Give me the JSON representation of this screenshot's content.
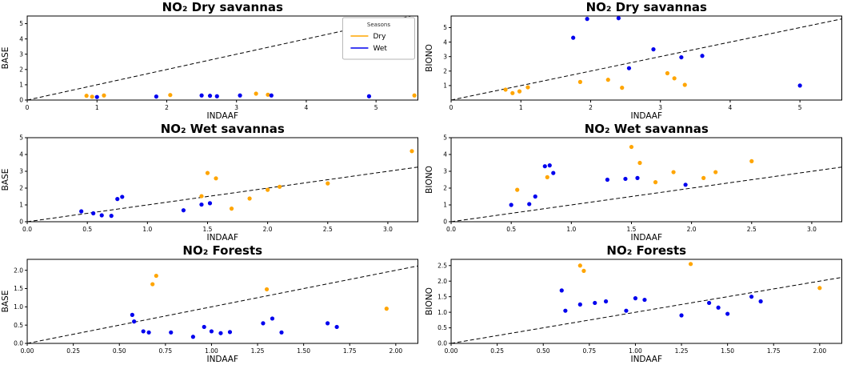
{
  "colors": {
    "dry": "#FFA500",
    "wet": "#0000EE",
    "identity_line": "#000000"
  },
  "legend": {
    "title": "Seasons",
    "entries": [
      {
        "label": "Dry",
        "color_key": "dry"
      },
      {
        "label": "Wet",
        "color_key": "wet"
      }
    ]
  },
  "chart_data": [
    {
      "type": "scatter",
      "title": "NO₂ Dry savannas",
      "xlabel": "INDAAF",
      "ylabel": "BASE",
      "xlim": [
        0,
        5.6
      ],
      "ylim": [
        0,
        5.5
      ],
      "xticks": {
        "values": [
          0,
          1,
          2,
          3,
          4,
          5
        ],
        "labels": [
          "0",
          "1",
          "2",
          "3",
          "4",
          "5"
        ]
      },
      "yticks": {
        "values": [
          0,
          1,
          2,
          3,
          4,
          5
        ],
        "labels": [
          "0",
          "1",
          "2",
          "3",
          "4",
          "5"
        ]
      },
      "identity_line": true,
      "has_legend": true,
      "series": [
        {
          "name": "Dry",
          "color_key": "dry",
          "points": [
            [
              0.85,
              0.28
            ],
            [
              0.93,
              0.22
            ],
            [
              1.1,
              0.3
            ],
            [
              2.05,
              0.33
            ],
            [
              3.28,
              0.42
            ],
            [
              3.45,
              0.35
            ],
            [
              5.55,
              0.3
            ]
          ]
        },
        {
          "name": "Wet",
          "color_key": "wet",
          "points": [
            [
              1.0,
              0.2
            ],
            [
              1.85,
              0.23
            ],
            [
              2.5,
              0.3
            ],
            [
              2.62,
              0.28
            ],
            [
              2.72,
              0.25
            ],
            [
              3.05,
              0.3
            ],
            [
              3.5,
              0.3
            ],
            [
              4.9,
              0.25
            ]
          ]
        }
      ]
    },
    {
      "type": "scatter",
      "title": "NO₂ Dry savannas",
      "xlabel": "INDAAF",
      "ylabel": "BIONO",
      "xlim": [
        0,
        5.6
      ],
      "ylim": [
        0,
        5.8
      ],
      "xticks": {
        "values": [
          0,
          1,
          2,
          3,
          4,
          5
        ],
        "labels": [
          "0",
          "1",
          "2",
          "3",
          "4",
          "5"
        ]
      },
      "yticks": {
        "values": [
          1,
          2,
          3,
          4,
          5
        ],
        "labels": [
          "1",
          "2",
          "3",
          "4",
          "5"
        ]
      },
      "identity_line": true,
      "has_legend": false,
      "series": [
        {
          "name": "Dry",
          "color_key": "dry",
          "points": [
            [
              0.78,
              0.72
            ],
            [
              0.88,
              0.48
            ],
            [
              0.98,
              0.6
            ],
            [
              1.1,
              0.88
            ],
            [
              1.85,
              1.25
            ],
            [
              2.25,
              1.4
            ],
            [
              2.45,
              0.85
            ],
            [
              3.1,
              1.85
            ],
            [
              3.2,
              1.5
            ],
            [
              3.35,
              1.05
            ]
          ]
        },
        {
          "name": "Wet",
          "color_key": "wet",
          "points": [
            [
              1.75,
              4.3
            ],
            [
              1.95,
              5.6
            ],
            [
              2.4,
              5.65
            ],
            [
              2.55,
              2.2
            ],
            [
              2.9,
              3.5
            ],
            [
              3.3,
              2.95
            ],
            [
              3.6,
              3.05
            ],
            [
              5.0,
              1.0
            ]
          ]
        }
      ]
    },
    {
      "type": "scatter",
      "title": "NO₂ Wet savannas",
      "xlabel": "INDAAF",
      "ylabel": "BASE",
      "xlim": [
        0,
        3.25
      ],
      "ylim": [
        0,
        5.0
      ],
      "xticks": {
        "values": [
          0,
          0.5,
          1.0,
          1.5,
          2.0,
          2.5,
          3.0
        ],
        "labels": [
          "0.0",
          "0.5",
          "1.0",
          "1.5",
          "2.0",
          "2.5",
          "3.0"
        ]
      },
      "yticks": {
        "values": [
          0,
          1,
          2,
          3,
          4,
          5
        ],
        "labels": [
          "0",
          "1",
          "2",
          "3",
          "4",
          "5"
        ]
      },
      "identity_line": true,
      "has_legend": false,
      "series": [
        {
          "name": "Dry",
          "color_key": "dry",
          "points": [
            [
              1.45,
              1.52
            ],
            [
              1.5,
              2.9
            ],
            [
              1.57,
              2.58
            ],
            [
              1.7,
              0.78
            ],
            [
              1.85,
              1.38
            ],
            [
              2.0,
              1.9
            ],
            [
              2.1,
              2.08
            ],
            [
              2.5,
              2.28
            ],
            [
              3.2,
              4.2
            ]
          ]
        },
        {
          "name": "Wet",
          "color_key": "wet",
          "points": [
            [
              0.45,
              0.62
            ],
            [
              0.55,
              0.5
            ],
            [
              0.62,
              0.38
            ],
            [
              0.7,
              0.35
            ],
            [
              0.75,
              1.35
            ],
            [
              0.79,
              1.48
            ],
            [
              1.3,
              0.68
            ],
            [
              1.45,
              1.02
            ],
            [
              1.52,
              1.1
            ]
          ]
        }
      ]
    },
    {
      "type": "scatter",
      "title": "NO₂ Wet savannas",
      "xlabel": "INDAAF",
      "ylabel": "BIONO",
      "xlim": [
        0,
        3.25
      ],
      "ylim": [
        0,
        5.0
      ],
      "xticks": {
        "values": [
          0,
          0.5,
          1.0,
          1.5,
          2.0,
          2.5,
          3.0
        ],
        "labels": [
          "0.0",
          "0.5",
          "1.0",
          "1.5",
          "2.0",
          "2.5",
          "3.0"
        ]
      },
      "yticks": {
        "values": [
          0,
          1,
          2,
          3,
          4,
          5
        ],
        "labels": [
          "0",
          "1",
          "2",
          "3",
          "4",
          "5"
        ]
      },
      "identity_line": true,
      "has_legend": false,
      "series": [
        {
          "name": "Dry",
          "color_key": "dry",
          "points": [
            [
              0.55,
              1.9
            ],
            [
              0.8,
              2.65
            ],
            [
              1.5,
              4.45
            ],
            [
              1.57,
              3.5
            ],
            [
              1.7,
              2.35
            ],
            [
              1.85,
              2.95
            ],
            [
              2.1,
              2.6
            ],
            [
              2.2,
              2.95
            ],
            [
              2.5,
              3.6
            ]
          ]
        },
        {
          "name": "Wet",
          "color_key": "wet",
          "points": [
            [
              0.5,
              1.0
            ],
            [
              0.65,
              1.05
            ],
            [
              0.7,
              1.5
            ],
            [
              0.78,
              3.3
            ],
            [
              0.82,
              3.35
            ],
            [
              0.85,
              2.9
            ],
            [
              1.3,
              2.5
            ],
            [
              1.45,
              2.55
            ],
            [
              1.55,
              2.6
            ],
            [
              1.95,
              2.2
            ]
          ]
        }
      ]
    },
    {
      "type": "scatter",
      "title": "NO₂ Forests",
      "xlabel": "INDAAF",
      "ylabel": "BASE",
      "xlim": [
        0,
        2.12
      ],
      "ylim": [
        0,
        2.3
      ],
      "xticks": {
        "values": [
          0,
          0.25,
          0.5,
          0.75,
          1.0,
          1.25,
          1.5,
          1.75,
          2.0
        ],
        "labels": [
          "0.00",
          "0.25",
          "0.50",
          "0.75",
          "1.00",
          "1.25",
          "1.50",
          "1.75",
          "2.00"
        ]
      },
      "yticks": {
        "values": [
          0,
          0.5,
          1.0,
          1.5,
          2.0
        ],
        "labels": [
          "0.0",
          "0.5",
          "1.0",
          "1.5",
          "2.0"
        ]
      },
      "identity_line": true,
      "has_legend": false,
      "series": [
        {
          "name": "Dry",
          "color_key": "dry",
          "points": [
            [
              0.68,
              1.62
            ],
            [
              0.7,
              1.85
            ],
            [
              1.3,
              1.48
            ],
            [
              1.95,
              0.95
            ]
          ]
        },
        {
          "name": "Wet",
          "color_key": "wet",
          "points": [
            [
              0.57,
              0.78
            ],
            [
              0.58,
              0.6
            ],
            [
              0.63,
              0.33
            ],
            [
              0.66,
              0.3
            ],
            [
              0.78,
              0.3
            ],
            [
              0.9,
              0.18
            ],
            [
              0.96,
              0.45
            ],
            [
              1.0,
              0.33
            ],
            [
              1.05,
              0.28
            ],
            [
              1.1,
              0.31
            ],
            [
              1.28,
              0.55
            ],
            [
              1.33,
              0.68
            ],
            [
              1.38,
              0.3
            ],
            [
              1.63,
              0.55
            ],
            [
              1.68,
              0.45
            ]
          ]
        }
      ]
    },
    {
      "type": "scatter",
      "title": "NO₂ Forests",
      "xlabel": "INDAAF",
      "ylabel": "BIONO",
      "xlim": [
        0,
        2.12
      ],
      "ylim": [
        0,
        2.7
      ],
      "xticks": {
        "values": [
          0,
          0.25,
          0.5,
          0.75,
          1.0,
          1.25,
          1.5,
          1.75,
          2.0
        ],
        "labels": [
          "0.00",
          "0.25",
          "0.50",
          "0.75",
          "1.00",
          "1.25",
          "1.50",
          "1.75",
          "2.00"
        ]
      },
      "yticks": {
        "values": [
          0,
          0.5,
          1.0,
          1.5,
          2.0,
          2.5
        ],
        "labels": [
          "0.0",
          "0.5",
          "1.0",
          "1.5",
          "2.0",
          "2.5"
        ]
      },
      "identity_line": true,
      "has_legend": false,
      "series": [
        {
          "name": "Dry",
          "color_key": "dry",
          "points": [
            [
              0.7,
              2.5
            ],
            [
              0.72,
              2.33
            ],
            [
              1.3,
              2.55
            ],
            [
              2.0,
              1.78
            ]
          ]
        },
        {
          "name": "Wet",
          "color_key": "wet",
          "points": [
            [
              0.6,
              1.7
            ],
            [
              0.62,
              1.05
            ],
            [
              0.7,
              1.25
            ],
            [
              0.78,
              1.3
            ],
            [
              0.84,
              1.35
            ],
            [
              0.95,
              1.05
            ],
            [
              1.0,
              1.45
            ],
            [
              1.05,
              1.4
            ],
            [
              1.25,
              0.9
            ],
            [
              1.4,
              1.3
            ],
            [
              1.45,
              1.15
            ],
            [
              1.5,
              0.95
            ],
            [
              1.63,
              1.5
            ],
            [
              1.68,
              1.35
            ]
          ]
        }
      ]
    }
  ]
}
